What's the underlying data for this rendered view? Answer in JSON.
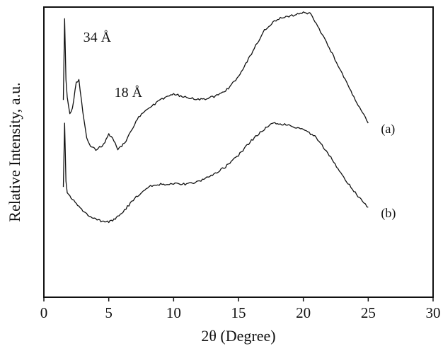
{
  "chart_data": {
    "type": "line",
    "title": "",
    "xlabel": "2θ (Degree)",
    "ylabel": "Relative Intensity, a.u.",
    "xlim": [
      0,
      30
    ],
    "x_ticks": [
      0,
      5,
      10,
      15,
      20,
      25,
      30
    ],
    "x_tick_labels": [
      "0",
      "5",
      "10",
      "15",
      "20",
      "25",
      "30"
    ],
    "y_scale": "arbitrary units, no tick labels",
    "ylim": [
      0,
      100
    ],
    "grid": false,
    "legend": "none (series labelled at right end of curves)",
    "line_color": "#111111",
    "series": [
      {
        "name": "(a)",
        "x": [
          1.5,
          1.6,
          1.7,
          1.8,
          2.0,
          2.2,
          2.5,
          2.7,
          3.0,
          3.3,
          3.6,
          4.0,
          4.5,
          5.0,
          5.3,
          5.7,
          6.2,
          6.8,
          7.3,
          8.0,
          9.0,
          10.0,
          11.0,
          12.0,
          13.0,
          14.0,
          15.0,
          16.0,
          17.0,
          18.0,
          19.0,
          20.0,
          20.5,
          21.0,
          22.0,
          23.0,
          24.0,
          25.0
        ],
        "y": [
          68,
          96,
          75,
          69,
          63,
          65,
          74,
          75,
          64,
          55,
          52,
          51,
          52,
          56,
          55,
          51,
          53,
          58,
          62,
          65,
          68,
          70,
          69,
          68,
          69,
          71,
          76,
          84,
          92,
          96,
          97,
          98,
          98,
          94,
          86,
          77,
          68,
          60
        ]
      },
      {
        "name": "(b)",
        "x": [
          1.5,
          1.6,
          1.7,
          1.8,
          2.0,
          2.5,
          3.0,
          3.5,
          4.0,
          4.5,
          5.0,
          5.5,
          6.0,
          7.0,
          8.0,
          9.0,
          10.0,
          11.0,
          12.0,
          13.0,
          14.0,
          15.0,
          16.0,
          17.0,
          17.5,
          18.0,
          19.0,
          20.0,
          21.0,
          22.0,
          23.0,
          24.0,
          25.0
        ],
        "y": [
          38,
          60,
          40,
          36,
          35,
          32,
          30,
          28,
          27,
          26,
          26,
          27,
          29,
          34,
          38,
          39,
          39,
          39,
          40,
          42,
          45,
          49,
          54,
          58,
          60,
          60,
          59,
          58,
          55,
          49,
          42,
          36,
          31
        ]
      }
    ],
    "annotations": [
      {
        "text": "34 Å",
        "x": 2.6,
        "y": 88
      },
      {
        "text": "18 Å",
        "x": 5.0,
        "y": 69
      }
    ]
  }
}
